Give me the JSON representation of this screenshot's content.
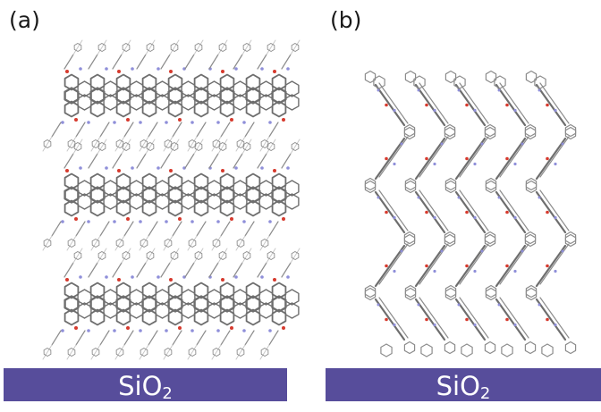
{
  "figure": {
    "panel_a": {
      "label": "(a)",
      "substrate_base": "SiO",
      "substrate_sub": "2"
    },
    "panel_b": {
      "label": "(b)",
      "substrate_base": "SiO",
      "substrate_sub": "2"
    }
  },
  "colors": {
    "substrate": "#574d9b",
    "carbon_bond": "#8c8c8c",
    "core_bond": "#6e6e6e",
    "oxygen": "#d63a2e",
    "nitrogen": "#8f8fd9",
    "hydrogen": "#c8c8c8"
  }
}
